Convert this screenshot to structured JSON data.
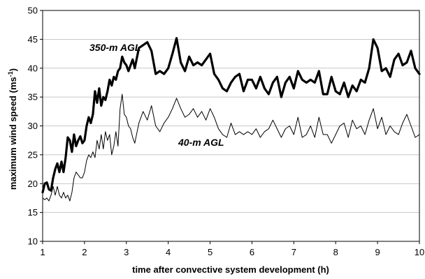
{
  "chart_data": {
    "type": "line",
    "xlabel": "time after convective system development (h)",
    "ylabel_main": "maximum wind speed (ms",
    "ylabel_sup": "-1",
    "ylabel_end": ")",
    "xlim": [
      1,
      10
    ],
    "ylim": [
      10,
      50
    ],
    "x_ticks": [
      1,
      2,
      3,
      4,
      5,
      6,
      7,
      8,
      9,
      10
    ],
    "y_ticks": [
      10,
      15,
      20,
      25,
      30,
      35,
      40,
      45,
      50
    ],
    "grid": "horizontal",
    "annotations": [
      "350-m AGL",
      "40-m AGL"
    ],
    "series": [
      {
        "name": "350-m AGL",
        "x": [
          1.0,
          1.05,
          1.1,
          1.15,
          1.2,
          1.25,
          1.3,
          1.35,
          1.4,
          1.45,
          1.5,
          1.55,
          1.6,
          1.65,
          1.7,
          1.75,
          1.8,
          1.85,
          1.9,
          1.95,
          2.0,
          2.05,
          2.1,
          2.15,
          2.2,
          2.25,
          2.3,
          2.35,
          2.4,
          2.45,
          2.5,
          2.55,
          2.6,
          2.65,
          2.7,
          2.75,
          2.8,
          2.85,
          2.9,
          2.95,
          3.0,
          3.05,
          3.1,
          3.15,
          3.2,
          3.3,
          3.4,
          3.5,
          3.6,
          3.7,
          3.8,
          3.9,
          4.0,
          4.1,
          4.2,
          4.3,
          4.4,
          4.5,
          4.6,
          4.7,
          4.8,
          4.9,
          5.0,
          5.1,
          5.2,
          5.3,
          5.4,
          5.5,
          5.6,
          5.7,
          5.8,
          5.9,
          6.0,
          6.1,
          6.2,
          6.3,
          6.4,
          6.5,
          6.6,
          6.7,
          6.8,
          6.9,
          7.0,
          7.1,
          7.2,
          7.3,
          7.4,
          7.5,
          7.6,
          7.7,
          7.8,
          7.9,
          8.0,
          8.1,
          8.2,
          8.3,
          8.4,
          8.5,
          8.6,
          8.7,
          8.8,
          8.9,
          9.0,
          9.1,
          9.2,
          9.3,
          9.4,
          9.5,
          9.6,
          9.7,
          9.8,
          9.9,
          10.0
        ],
        "y": [
          18.5,
          20.0,
          20.2,
          19.0,
          18.8,
          21.0,
          22.5,
          23.5,
          22.0,
          23.8,
          22.0,
          24.5,
          28.0,
          27.5,
          25.5,
          28.5,
          26.5,
          27.5,
          28.2,
          27.0,
          27.5,
          30.0,
          31.5,
          30.5,
          32.0,
          36.0,
          34.0,
          36.5,
          33.5,
          35.0,
          34.5,
          36.0,
          38.0,
          37.0,
          38.5,
          38.0,
          39.5,
          40.0,
          42.0,
          41.0,
          40.5,
          39.5,
          40.5,
          41.5,
          40.0,
          43.5,
          44.0,
          44.5,
          43.0,
          39.0,
          39.5,
          39.0,
          40.0,
          42.5,
          45.2,
          41.0,
          39.5,
          42.0,
          40.5,
          41.0,
          40.5,
          41.5,
          42.5,
          39.0,
          38.0,
          36.5,
          36.0,
          37.5,
          38.5,
          39.0,
          36.0,
          38.0,
          38.0,
          36.5,
          38.5,
          36.5,
          35.5,
          37.5,
          38.5,
          35.0,
          37.5,
          38.5,
          36.5,
          39.5,
          38.0,
          37.5,
          38.0,
          37.5,
          39.5,
          35.5,
          35.5,
          38.5,
          36.0,
          35.5,
          37.5,
          35.0,
          37.0,
          36.0,
          38.0,
          37.5,
          40.0,
          45.0,
          43.5,
          39.5,
          40.0,
          38.5,
          41.5,
          42.5,
          40.5,
          41.0,
          43.0,
          40.0,
          39.0
        ]
      },
      {
        "name": "40-m AGL",
        "x": [
          1.0,
          1.05,
          1.1,
          1.15,
          1.2,
          1.25,
          1.3,
          1.35,
          1.4,
          1.45,
          1.5,
          1.55,
          1.6,
          1.65,
          1.7,
          1.75,
          1.8,
          1.85,
          1.9,
          1.95,
          2.0,
          2.05,
          2.1,
          2.15,
          2.2,
          2.25,
          2.3,
          2.35,
          2.4,
          2.45,
          2.5,
          2.55,
          2.6,
          2.65,
          2.7,
          2.75,
          2.8,
          2.85,
          2.9,
          2.95,
          3.0,
          3.05,
          3.1,
          3.15,
          3.2,
          3.3,
          3.4,
          3.5,
          3.6,
          3.7,
          3.8,
          3.9,
          4.0,
          4.1,
          4.2,
          4.3,
          4.4,
          4.5,
          4.6,
          4.7,
          4.8,
          4.9,
          5.0,
          5.1,
          5.2,
          5.3,
          5.4,
          5.5,
          5.6,
          5.7,
          5.8,
          5.9,
          6.0,
          6.1,
          6.2,
          6.3,
          6.4,
          6.5,
          6.6,
          6.7,
          6.8,
          6.9,
          7.0,
          7.1,
          7.2,
          7.3,
          7.4,
          7.5,
          7.6,
          7.7,
          7.8,
          7.9,
          8.0,
          8.1,
          8.2,
          8.3,
          8.4,
          8.5,
          8.6,
          8.7,
          8.8,
          8.9,
          9.0,
          9.1,
          9.2,
          9.3,
          9.4,
          9.5,
          9.6,
          9.7,
          9.8,
          9.9,
          10.0
        ],
        "y": [
          17.5,
          17.2,
          17.5,
          17.0,
          18.0,
          19.5,
          18.0,
          19.5,
          18.0,
          17.5,
          18.5,
          17.5,
          18.0,
          17.0,
          18.5,
          21.0,
          22.0,
          21.5,
          21.0,
          21.0,
          22.0,
          24.0,
          25.0,
          24.5,
          25.5,
          24.5,
          27.5,
          26.0,
          28.5,
          26.0,
          29.0,
          27.5,
          28.5,
          25.0,
          26.5,
          29.0,
          26.5,
          33.0,
          35.5,
          32.0,
          31.5,
          30.0,
          29.5,
          28.0,
          27.0,
          30.5,
          32.5,
          31.0,
          33.5,
          30.0,
          29.0,
          30.5,
          31.5,
          33.0,
          34.8,
          33.0,
          31.5,
          32.0,
          33.0,
          31.5,
          32.5,
          31.0,
          33.0,
          31.5,
          29.5,
          28.5,
          28.0,
          30.5,
          28.5,
          29.0,
          28.5,
          29.0,
          28.5,
          29.5,
          28.0,
          29.0,
          29.5,
          31.0,
          29.5,
          28.0,
          29.5,
          30.0,
          28.5,
          31.5,
          28.0,
          28.5,
          30.0,
          28.0,
          31.5,
          28.5,
          28.5,
          27.0,
          28.5,
          30.0,
          30.5,
          28.0,
          31.0,
          29.5,
          30.0,
          28.5,
          31.0,
          33.0,
          29.5,
          31.5,
          28.5,
          30.0,
          29.0,
          28.5,
          30.5,
          32.0,
          30.0,
          28.0,
          28.5
        ]
      }
    ]
  }
}
